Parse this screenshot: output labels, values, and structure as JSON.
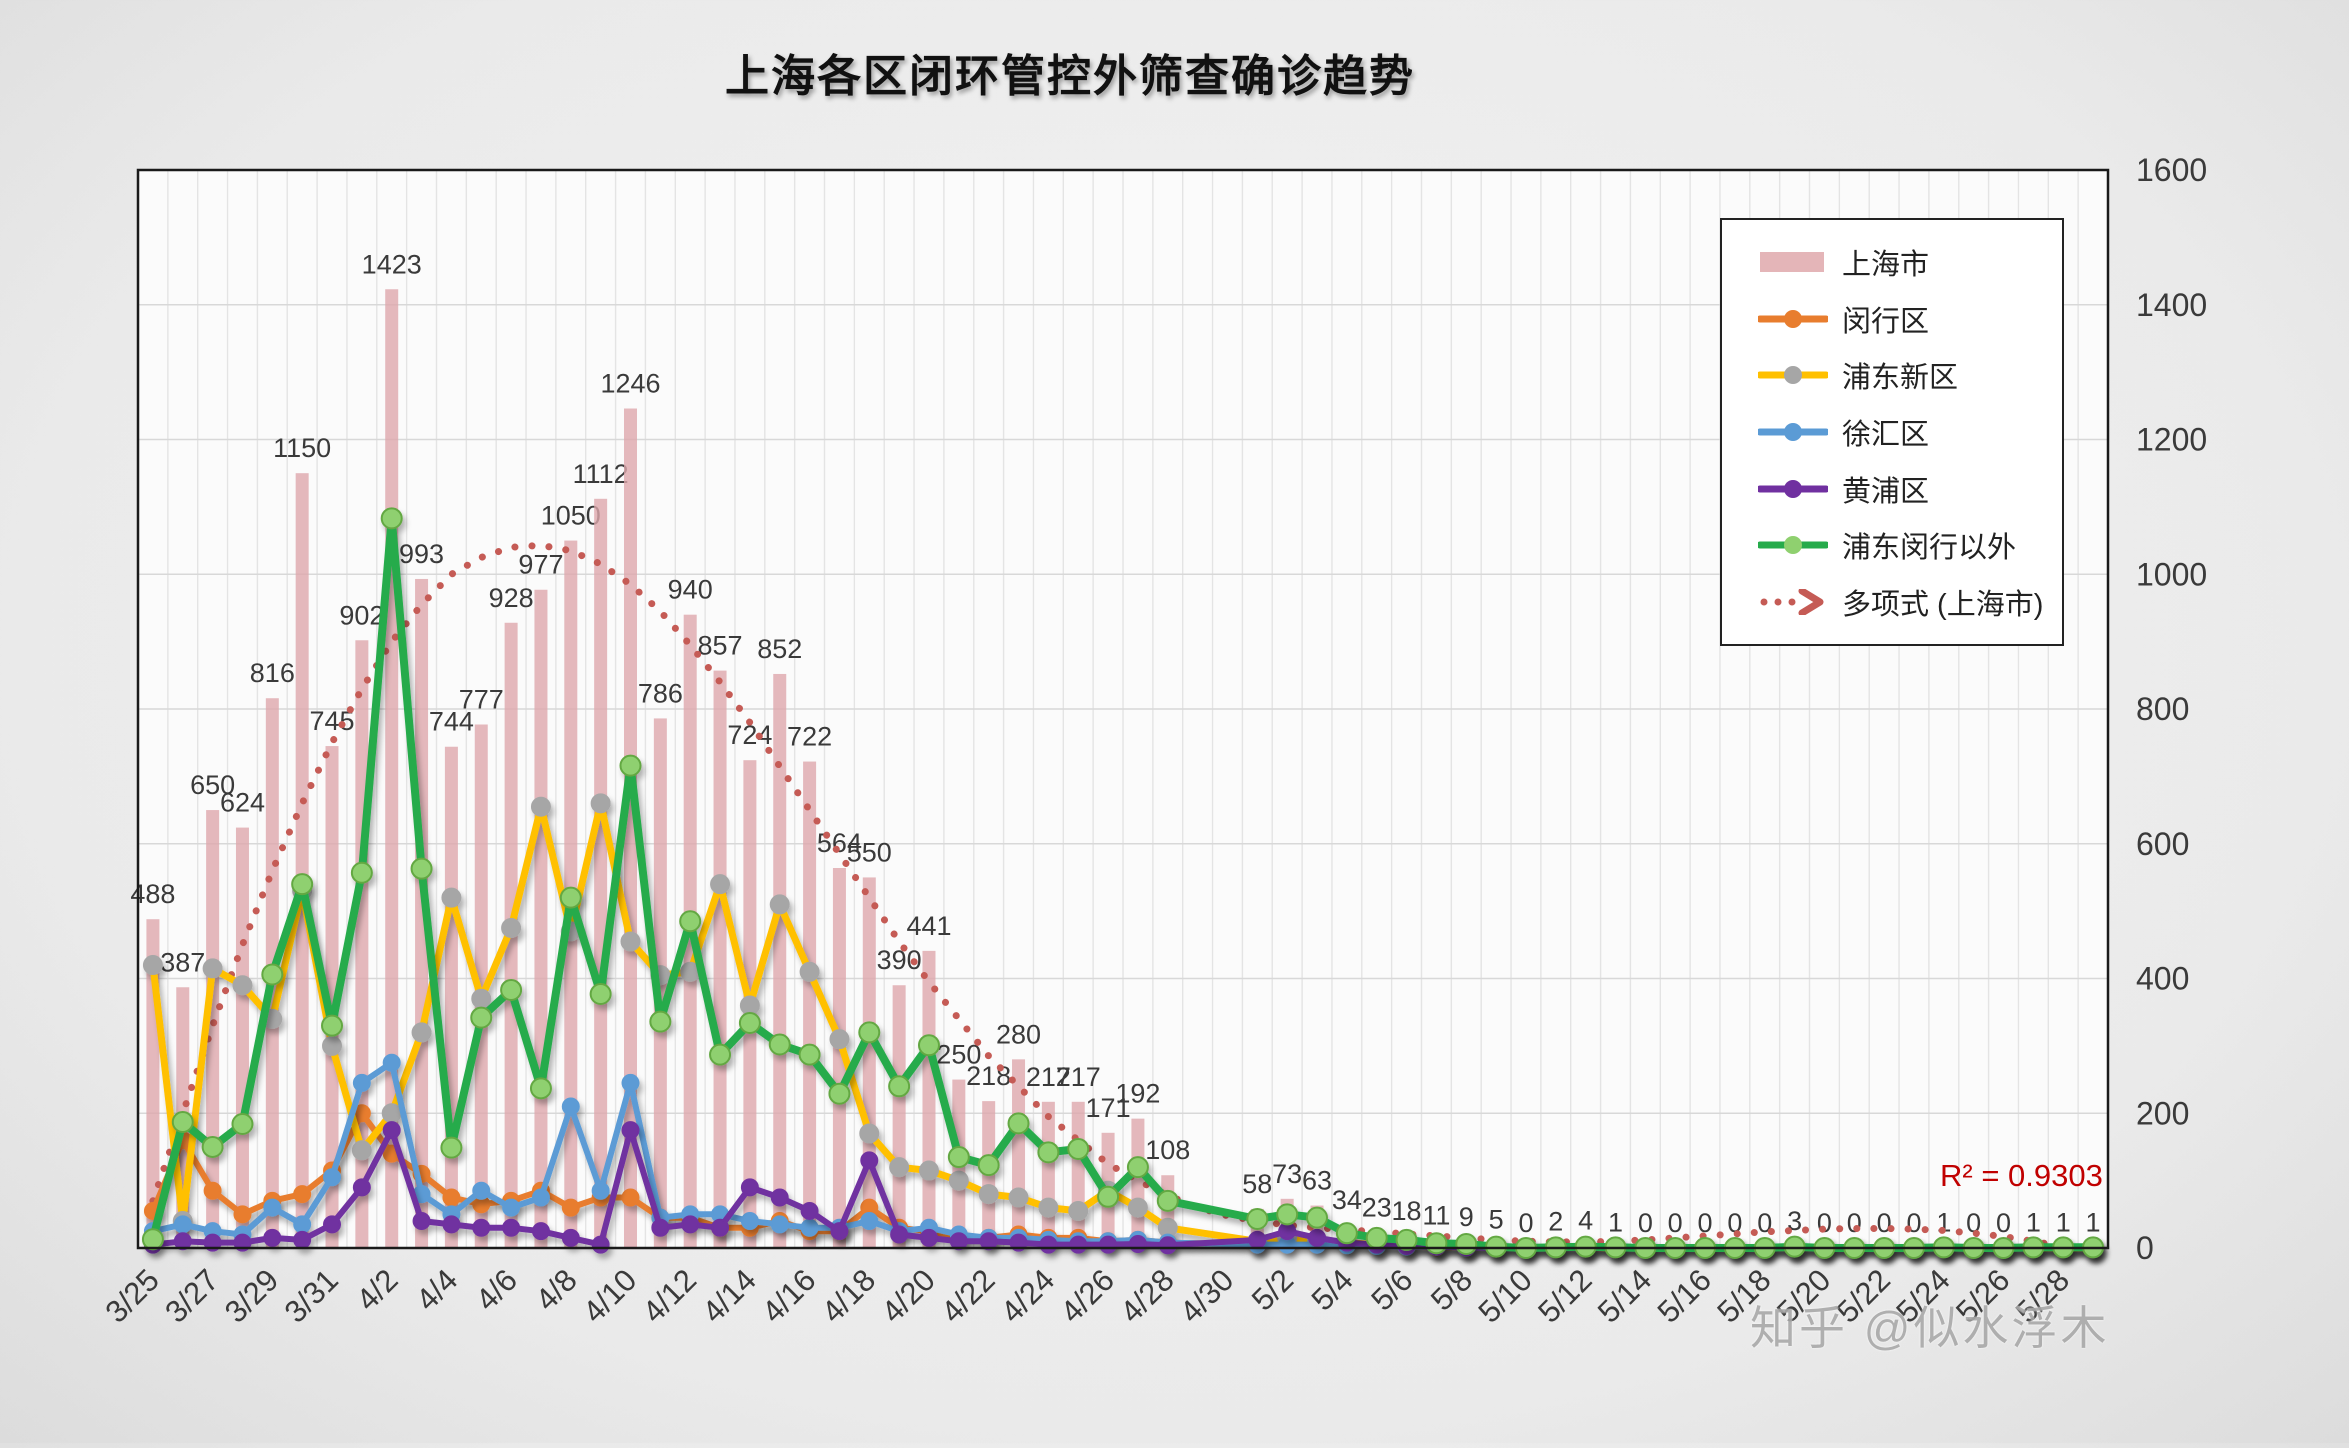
{
  "title": "上海各区闭环管控外筛查确诊趋势",
  "annotations": {
    "r_squared": "R² = 0.9303",
    "watermark": "知乎 @似水浮木"
  },
  "legend": {
    "items": [
      {
        "label": "上海市",
        "type": "bar",
        "color": "#DFA8AC"
      },
      {
        "label": "闵行区",
        "type": "line",
        "color": "#E87D2E",
        "marker": "#E87D2E"
      },
      {
        "label": "浦东新区",
        "type": "line",
        "color": "#FFC000",
        "marker": "#A6A6A6"
      },
      {
        "label": "徐汇区",
        "type": "line",
        "color": "#5B9BD5",
        "marker": "#5B9BD5"
      },
      {
        "label": "黄浦区",
        "type": "line",
        "color": "#7030A0",
        "marker": "#7030A0"
      },
      {
        "label": "浦东闵行以外",
        "type": "line",
        "color": "#26AB4B",
        "marker": "#8FD06F"
      },
      {
        "label": "多项式 (上海市)",
        "type": "trend",
        "color": "#C55B55"
      }
    ]
  },
  "chart_data": {
    "type": "bar",
    "subtype": "bar-line-combo",
    "title": "上海各区闭环管控外筛查确诊趋势",
    "xlabel": "",
    "ylabel": "",
    "ylim": [
      0,
      1600
    ],
    "yticks": [
      0,
      200,
      400,
      600,
      800,
      1000,
      1200,
      1400,
      1600
    ],
    "grid": "both",
    "legend_position": "upper-right",
    "note_missing_days": "4/29 and 4/30 have no data (gap in all series)",
    "categories": [
      "3/25",
      "3/26",
      "3/27",
      "3/28",
      "3/29",
      "3/30",
      "3/31",
      "4/1",
      "4/2",
      "4/3",
      "4/4",
      "4/5",
      "4/6",
      "4/7",
      "4/8",
      "4/9",
      "4/10",
      "4/11",
      "4/12",
      "4/13",
      "4/14",
      "4/15",
      "4/16",
      "4/17",
      "4/18",
      "4/19",
      "4/20",
      "4/21",
      "4/22",
      "4/23",
      "4/24",
      "4/25",
      "4/26",
      "4/27",
      "4/28",
      "4/29",
      "4/30",
      "5/1",
      "5/2",
      "5/3",
      "5/4",
      "5/5",
      "5/6",
      "5/7",
      "5/8",
      "5/9",
      "5/10",
      "5/11",
      "5/12",
      "5/13",
      "5/14",
      "5/15",
      "5/16",
      "5/17",
      "5/18",
      "5/19",
      "5/20",
      "5/21",
      "5/22",
      "5/23",
      "5/24",
      "5/25",
      "5/26",
      "5/27",
      "5/28",
      "5/29"
    ],
    "x_tick_labels": [
      "3/25",
      "3/27",
      "3/29",
      "3/31",
      "4/2",
      "4/4",
      "4/6",
      "4/8",
      "4/10",
      "4/12",
      "4/14",
      "4/16",
      "4/18",
      "4/20",
      "4/22",
      "4/24",
      "4/26",
      "4/28",
      "4/30",
      "5/2",
      "5/4",
      "5/6",
      "5/8",
      "5/10",
      "5/12",
      "5/14",
      "5/16",
      "5/18",
      "5/20",
      "5/22",
      "5/24",
      "5/26",
      "5/28"
    ],
    "series": [
      {
        "name": "上海市",
        "type": "bar",
        "color": "#DFA8AC",
        "labels": true,
        "values": [
          488,
          387,
          650,
          624,
          816,
          1150,
          745,
          902,
          1423,
          993,
          744,
          777,
          928,
          977,
          1050,
          1112,
          1246,
          786,
          940,
          857,
          724,
          852,
          722,
          564,
          550,
          390,
          441,
          250,
          218,
          280,
          217,
          217,
          171,
          192,
          108,
          null,
          null,
          58,
          73,
          63,
          34,
          23,
          18,
          11,
          9,
          5,
          0,
          2,
          4,
          1,
          0,
          0,
          0,
          0,
          0,
          3,
          0,
          0,
          0,
          0,
          1,
          0,
          0,
          1,
          1,
          1
        ]
      },
      {
        "name": "闵行区",
        "type": "line",
        "color": "#E87D2E",
        "marker": "#E87D2E",
        "width": 6,
        "r": 8,
        "values": [
          55,
          160,
          85,
          50,
          70,
          80,
          115,
          200,
          140,
          110,
          75,
          65,
          70,
          85,
          60,
          75,
          75,
          45,
          45,
          30,
          30,
          40,
          25,
          25,
          60,
          30,
          25,
          15,
          15,
          20,
          15,
          15,
          10,
          12,
          8,
          null,
          null,
          5,
          8,
          6,
          4,
          3,
          2,
          1,
          1,
          1,
          0,
          0,
          1,
          0,
          0,
          0,
          0,
          0,
          0,
          0,
          0,
          0,
          0,
          0,
          0,
          0,
          0,
          0,
          0,
          0
        ]
      },
      {
        "name": "浦东新区",
        "type": "line",
        "color": "#FFC000",
        "marker": "#A6A6A6",
        "width": 7,
        "r": 9,
        "values": [
          420,
          40,
          415,
          390,
          340,
          530,
          300,
          145,
          200,
          320,
          520,
          370,
          475,
          655,
          470,
          660,
          455,
          405,
          410,
          540,
          360,
          510,
          410,
          310,
          170,
          120,
          115,
          100,
          80,
          75,
          60,
          55,
          85,
          60,
          30,
          null,
          null,
          10,
          15,
          12,
          8,
          5,
          4,
          3,
          2,
          2,
          0,
          1,
          1,
          0,
          0,
          0,
          0,
          0,
          0,
          1,
          0,
          0,
          0,
          0,
          0,
          0,
          0,
          0,
          0,
          0
        ]
      },
      {
        "name": "徐汇区",
        "type": "line",
        "color": "#5B9BD5",
        "marker": "#5B9BD5",
        "width": 6,
        "r": 8,
        "values": [
          25,
          35,
          25,
          20,
          60,
          35,
          105,
          245,
          275,
          80,
          50,
          85,
          60,
          75,
          210,
          85,
          245,
          45,
          50,
          50,
          40,
          35,
          30,
          30,
          40,
          25,
          30,
          20,
          15,
          15,
          12,
          10,
          10,
          12,
          8,
          null,
          null,
          5,
          5,
          5,
          4,
          3,
          2,
          2,
          1,
          1,
          0,
          0,
          0,
          0,
          0,
          0,
          0,
          0,
          0,
          0,
          0,
          0,
          0,
          0,
          0,
          0,
          0,
          0,
          0,
          0
        ]
      },
      {
        "name": "黄浦区",
        "type": "line",
        "color": "#7030A0",
        "marker": "#7030A0",
        "width": 6,
        "r": 8,
        "values": [
          5,
          10,
          8,
          8,
          15,
          12,
          35,
          90,
          175,
          40,
          35,
          30,
          30,
          25,
          15,
          5,
          175,
          30,
          35,
          30,
          90,
          75,
          55,
          25,
          130,
          20,
          15,
          10,
          10,
          8,
          5,
          5,
          5,
          6,
          4,
          null,
          null,
          12,
          25,
          15,
          8,
          5,
          3,
          2,
          1,
          0,
          0,
          0,
          0,
          0,
          0,
          0,
          0,
          0,
          0,
          0,
          0,
          0,
          0,
          0,
          0,
          0,
          0,
          0,
          0,
          0
        ]
      },
      {
        "name": "浦东闵行以外",
        "type": "line",
        "color": "#26AB4B",
        "marker": "#8FD06F",
        "marker_stroke": "#63a843",
        "width": 8,
        "r": 10,
        "values": [
          13,
          187,
          150,
          184,
          406,
          540,
          330,
          557,
          1083,
          563,
          149,
          342,
          383,
          237,
          520,
          377,
          716,
          336,
          485,
          287,
          334,
          302,
          287,
          229,
          320,
          240,
          301,
          135,
          123,
          185,
          142,
          147,
          76,
          120,
          70,
          null,
          null,
          43,
          50,
          45,
          22,
          15,
          12,
          7,
          6,
          2,
          0,
          1,
          2,
          1,
          0,
          0,
          0,
          0,
          0,
          2,
          0,
          0,
          0,
          0,
          1,
          0,
          0,
          1,
          1,
          1
        ]
      },
      {
        "name": "多项式 (上海市)",
        "type": "trend",
        "color": "#C55B55",
        "width": 7,
        "values": [
          70,
          200,
          330,
          450,
          560,
          660,
          750,
          830,
          900,
          955,
          1000,
          1025,
          1040,
          1043,
          1035,
          1015,
          985,
          945,
          895,
          840,
          780,
          715,
          650,
          585,
          520,
          455,
          395,
          340,
          285,
          240,
          195,
          160,
          125,
          100,
          78,
          60,
          48,
          40,
          34,
          30,
          27,
          24,
          21,
          18,
          15,
          12,
          10,
          9,
          9,
          10,
          12,
          15,
          18,
          21,
          24,
          26,
          28,
          29,
          29,
          28,
          26,
          22,
          17,
          10,
          2,
          null
        ]
      }
    ]
  }
}
